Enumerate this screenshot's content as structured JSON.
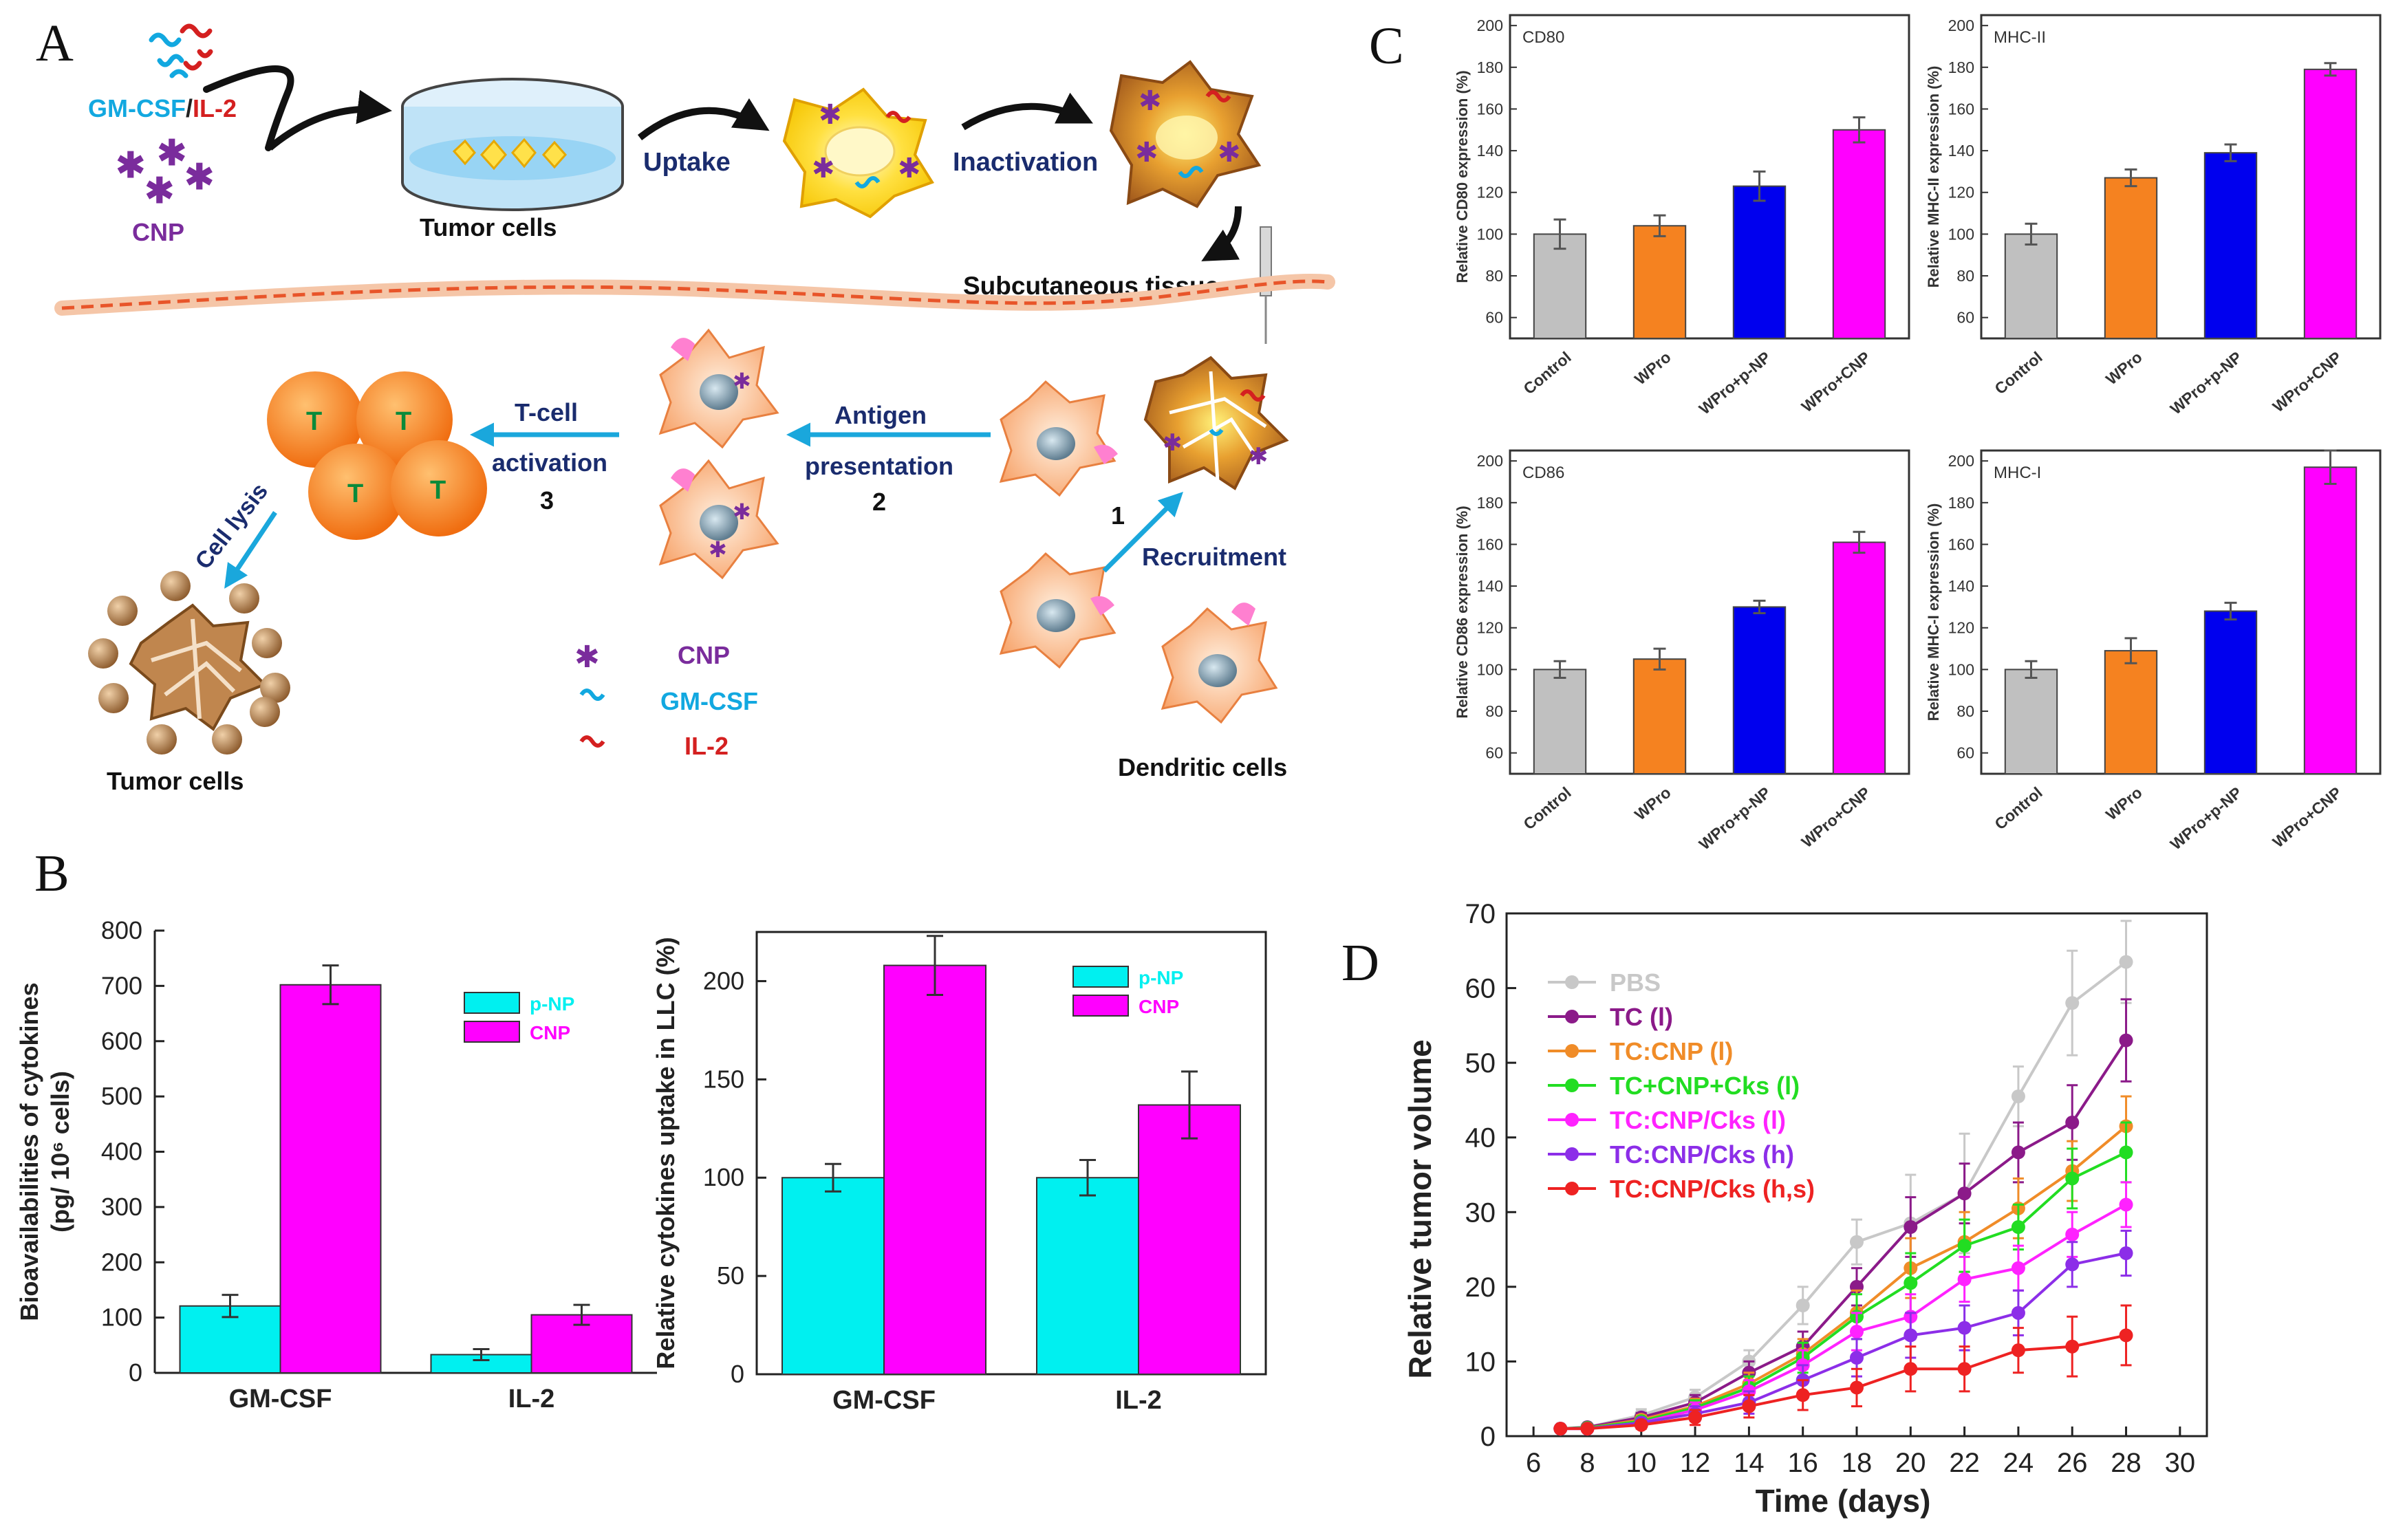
{
  "panel_letters": {
    "a": "A",
    "b": "B",
    "c": "C",
    "d": "D"
  },
  "schematic": {
    "gmcsf": "GM-CSF",
    "slash": "/",
    "il2": "IL-2",
    "cnp": "CNP",
    "tumor_cells_top": "Tumor cells",
    "uptake": "Uptake",
    "inactivation": "Inactivation",
    "subcutaneous": "Subcutaneous tissue",
    "tcell_line1": "T-cell",
    "tcell_line2": "activation",
    "step3": "3",
    "antigen_line1": "Antigen",
    "antigen_line2": "presentation",
    "step2": "2",
    "step1": "1",
    "recruitment": "Recruitment",
    "cell_lysis": "Cell lysis",
    "tumor_cells_bottom": "Tumor cells",
    "dendritic": "Dendritic cells",
    "t_label": "T",
    "legend": {
      "cnp": "CNP",
      "gmcsf": "GM-CSF",
      "il2": "IL-2"
    },
    "colors": {
      "gmcsf": "#12a8e0",
      "il2": "#d42020",
      "cnp": "#7a2c9c",
      "arrow": "#1aa7dc",
      "text_dark": "#1a2c6e",
      "tcell": "#f07a18",
      "tumor": "#9c6a3c"
    }
  },
  "chart_data": [
    {
      "id": "B1",
      "type": "bar",
      "categories": [
        "GM-CSF",
        "IL-2"
      ],
      "series": [
        {
          "name": "p-NP",
          "color": "#00f0f0",
          "values": [
            121,
            33
          ],
          "errors": [
            20,
            10
          ]
        },
        {
          "name": "CNP",
          "color": "#ff00ff",
          "values": [
            702,
            105
          ],
          "errors": [
            35,
            18
          ]
        }
      ],
      "ylabel_line1": "Bioavailabilities of cytokines",
      "ylabel_line2": "(pg/ 10⁶ cells)",
      "ylim": [
        0,
        800
      ],
      "yticks": [
        "0",
        "100",
        "200",
        "300",
        "400",
        "500",
        "600",
        "700",
        "800"
      ],
      "legend_position": "top-right"
    },
    {
      "id": "B2",
      "type": "bar",
      "categories": [
        "GM-CSF",
        "IL-2"
      ],
      "series": [
        {
          "name": "p-NP",
          "color": "#00f0f0",
          "values": [
            100,
            100
          ],
          "errors": [
            7,
            9
          ]
        },
        {
          "name": "CNP",
          "color": "#ff00ff",
          "values": [
            208,
            137
          ],
          "errors": [
            15,
            17
          ]
        }
      ],
      "ylabel": "Relative cytokines uptake in LLC (%)",
      "ylim": [
        0,
        225
      ],
      "yticks": [
        "0",
        "50",
        "100",
        "150",
        "200"
      ],
      "legend_position": "top-right"
    },
    {
      "id": "C1",
      "type": "bar",
      "title": "CD80",
      "categories": [
        "Control",
        "WPro",
        "WPro+p-NP",
        "WPro+CNP"
      ],
      "values": [
        100,
        104,
        123,
        150
      ],
      "errors": [
        7,
        5,
        7,
        6
      ],
      "colors": [
        "#c0c0c0",
        "#f58220",
        "#0000ee",
        "#ff00ff"
      ],
      "ylabel": "Relative CD80 expression (%)",
      "ylim": [
        50,
        205
      ],
      "yticks": [
        "60",
        "80",
        "100",
        "120",
        "140",
        "160",
        "180",
        "200"
      ]
    },
    {
      "id": "C2",
      "type": "bar",
      "title": "MHC-II",
      "categories": [
        "Control",
        "WPro",
        "WPro+p-NP",
        "WPro+CNP"
      ],
      "values": [
        100,
        127,
        139,
        179
      ],
      "errors": [
        5,
        4,
        4,
        3
      ],
      "colors": [
        "#c0c0c0",
        "#f58220",
        "#0000ee",
        "#ff00ff"
      ],
      "ylabel": "Relative MHC-II expression (%)",
      "ylim": [
        50,
        205
      ],
      "yticks": [
        "60",
        "80",
        "100",
        "120",
        "140",
        "160",
        "180",
        "200"
      ]
    },
    {
      "id": "C3",
      "type": "bar",
      "title": "CD86",
      "categories": [
        "Control",
        "WPro",
        "WPro+p-NP",
        "WPro+CNP"
      ],
      "values": [
        100,
        105,
        130,
        161
      ],
      "errors": [
        4,
        5,
        3,
        5
      ],
      "colors": [
        "#c0c0c0",
        "#f58220",
        "#0000ee",
        "#ff00ff"
      ],
      "ylabel": "Relative CD86 expression (%)",
      "ylim": [
        50,
        205
      ],
      "yticks": [
        "60",
        "80",
        "100",
        "120",
        "140",
        "160",
        "180",
        "200"
      ]
    },
    {
      "id": "C4",
      "type": "bar",
      "title": "MHC-I",
      "categories": [
        "Control",
        "WPro",
        "WPro+p-NP",
        "WPro+CNP"
      ],
      "values": [
        100,
        109,
        128,
        197
      ],
      "errors": [
        4,
        6,
        4,
        8
      ],
      "colors": [
        "#c0c0c0",
        "#f58220",
        "#0000ee",
        "#ff00ff"
      ],
      "ylabel": "Relative MHC-I expression (%)",
      "ylim": [
        50,
        205
      ],
      "yticks": [
        "60",
        "80",
        "100",
        "120",
        "140",
        "160",
        "180",
        "200"
      ]
    },
    {
      "id": "D",
      "type": "line",
      "xlabel": "Time (days)",
      "ylabel": "Relative tumor volume",
      "xlim": [
        5,
        31
      ],
      "ylim": [
        0,
        70
      ],
      "xticks": [
        "6",
        "8",
        "10",
        "12",
        "14",
        "16",
        "18",
        "20",
        "22",
        "24",
        "26",
        "28",
        "30"
      ],
      "yticks": [
        "0",
        "10",
        "20",
        "30",
        "40",
        "50",
        "60",
        "70"
      ],
      "x": [
        7,
        8,
        10,
        12,
        14,
        16,
        18,
        20,
        22,
        24,
        26,
        28
      ],
      "legend_position": "top-left",
      "series": [
        {
          "name": "PBS",
          "color": "#c8c8c8",
          "values": [
            1,
            1.2,
            2.8,
            5.2,
            10,
            17.5,
            26,
            28.5,
            32.5,
            45.5,
            58,
            63.5
          ],
          "errors": [
            0.2,
            0.3,
            0.8,
            1,
            1.5,
            2.5,
            3,
            6.5,
            8,
            4,
            7,
            5.5
          ]
        },
        {
          "name": "TC (l)",
          "color": "#8b1a89",
          "values": [
            1,
            1.2,
            2.5,
            4.5,
            8.5,
            12,
            20,
            28,
            32.5,
            38,
            42,
            53
          ],
          "errors": [
            0.2,
            0.3,
            0.6,
            1,
            1.5,
            2,
            2.5,
            4,
            4,
            4,
            5,
            5.5
          ]
        },
        {
          "name": "TC:CNP (l)",
          "color": "#f08c28",
          "values": [
            1,
            1.1,
            2.2,
            4,
            7,
            11,
            16.5,
            22.5,
            26,
            30.5,
            35.5,
            41.5
          ],
          "errors": [
            0.2,
            0.3,
            0.6,
            1,
            1.5,
            2,
            3,
            4,
            4,
            4,
            4,
            4
          ]
        },
        {
          "name": "TC+CNP+Cks (l)",
          "color": "#22dd22",
          "values": [
            1,
            1.1,
            2,
            3.8,
            6.5,
            10.5,
            16,
            20.5,
            25.5,
            28,
            34.5,
            38
          ],
          "errors": [
            0.2,
            0.3,
            0.5,
            1,
            1.5,
            2,
            3,
            4,
            3.5,
            3,
            4,
            4
          ]
        },
        {
          "name": "TC:CNP/Cks (l)",
          "color": "#ff22ff",
          "values": [
            1,
            1,
            1.8,
            3.5,
            6,
            9.5,
            14,
            16,
            21,
            22.5,
            27,
            31
          ],
          "errors": [
            0.2,
            0.3,
            0.5,
            1,
            1.5,
            2,
            2.5,
            3,
            3,
            3,
            3,
            3
          ]
        },
        {
          "name": "TC:CNP/Cks (h)",
          "color": "#8c2ee8",
          "values": [
            1,
            1,
            1.8,
            3,
            4.5,
            7.5,
            10.5,
            13.5,
            14.5,
            16.5,
            23,
            24.5
          ],
          "errors": [
            0.2,
            0.3,
            0.5,
            1,
            1.5,
            2,
            2.5,
            3,
            3,
            3,
            3,
            3
          ]
        },
        {
          "name": "TC:CNP/Cks (h,s)",
          "color": "#ee2222",
          "values": [
            1,
            1,
            1.5,
            2.5,
            4,
            5.5,
            6.5,
            9,
            9,
            11.5,
            12,
            13.5
          ],
          "errors": [
            0.2,
            0.3,
            0.5,
            1,
            1.5,
            2,
            2.5,
            3,
            3,
            3,
            4,
            4
          ]
        }
      ]
    }
  ]
}
